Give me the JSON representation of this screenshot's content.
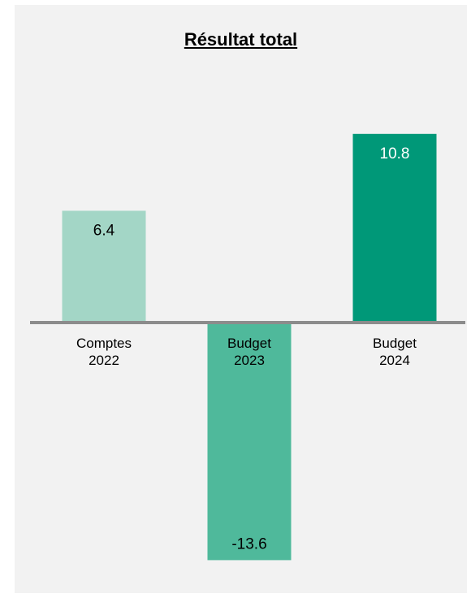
{
  "chart_data": {
    "type": "bar",
    "title": "Résultat  total",
    "categories": [
      [
        "Comptes",
        "2022"
      ],
      [
        "Budget",
        "2023"
      ],
      [
        "Budget",
        "2024"
      ]
    ],
    "values": [
      6.4,
      -13.6,
      10.8
    ],
    "value_labels": [
      "6.4",
      "-13.6",
      "10.8"
    ],
    "colors": [
      "#a3d6c6",
      "#4fb99b",
      "#009878"
    ],
    "label_colors": [
      "#000000",
      "#000000",
      "#ffffff"
    ],
    "axis_color": "#8c8c8c",
    "background": "#f2f2f2",
    "grid": false,
    "legend": "none",
    "ylim": [
      -16.2,
      12.9
    ]
  }
}
